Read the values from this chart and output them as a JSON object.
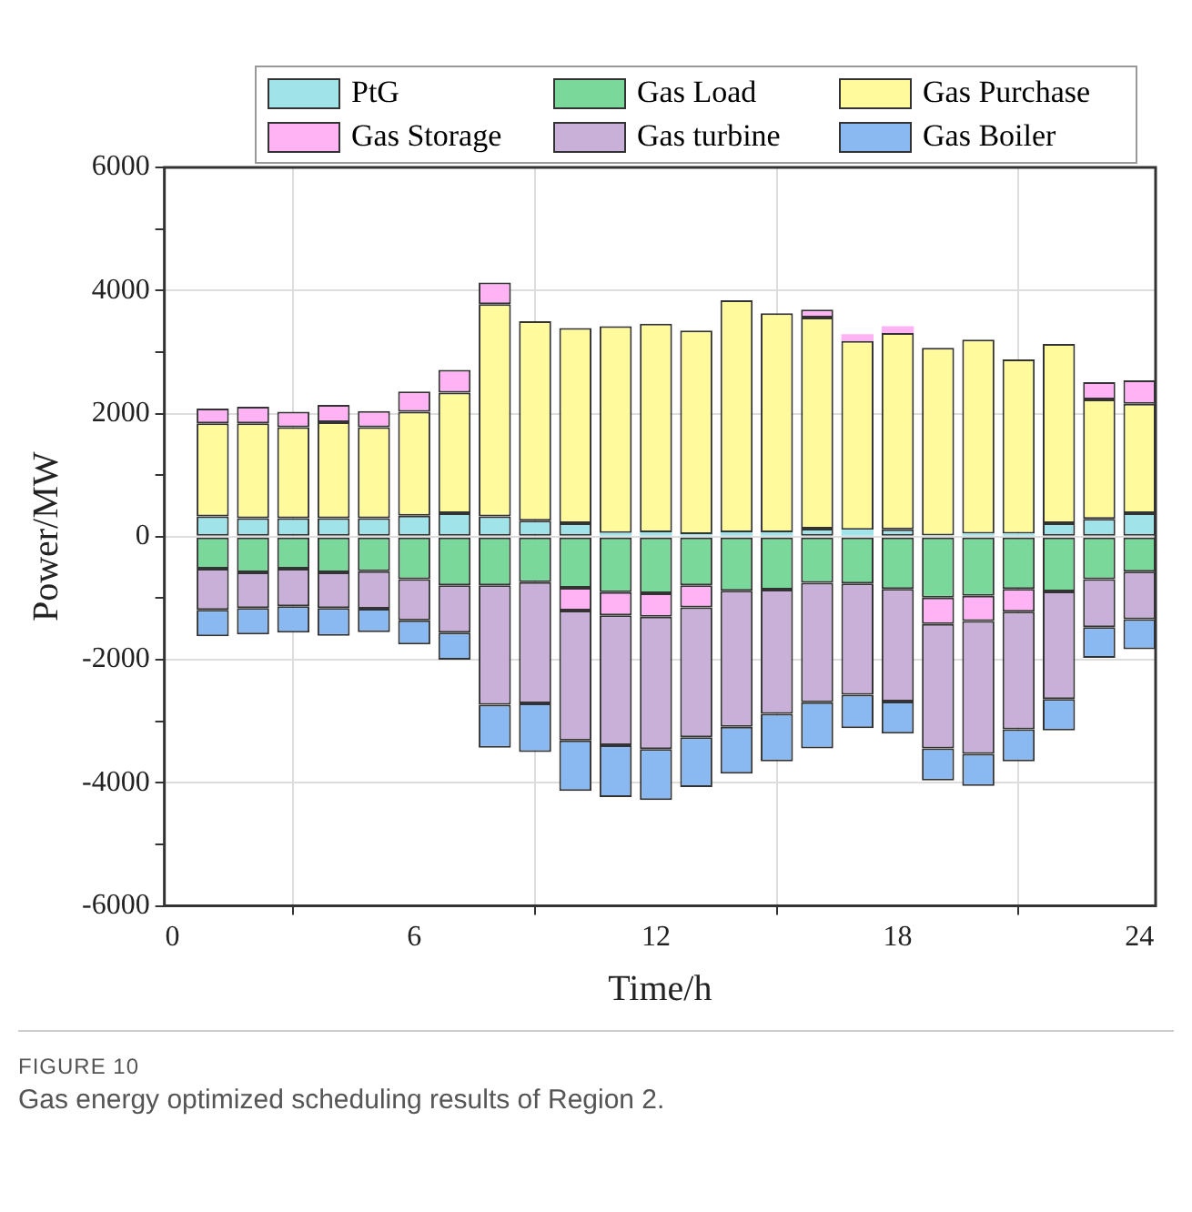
{
  "chart_data": {
    "type": "bar",
    "stacked": true,
    "xlabel": "Time/h",
    "ylabel": "Power/MW",
    "x": [
      1,
      2,
      3,
      4,
      5,
      6,
      7,
      8,
      9,
      10,
      11,
      12,
      13,
      14,
      15,
      16,
      17,
      18,
      19,
      20,
      21,
      22,
      23,
      24
    ],
    "xlim": [
      -0.2,
      24.4
    ],
    "xticks": [
      0,
      6,
      12,
      18,
      24
    ],
    "ylim": [
      -6000,
      6000
    ],
    "yticks": [
      -6000,
      {
        "value": -5000,
        "label": null
      },
      -4000,
      {
        "value": -3000,
        "label": null
      },
      -2000,
      {
        "value": -1000,
        "label": null
      },
      0,
      {
        "value": 1000,
        "label": null
      },
      2000,
      {
        "value": 3000,
        "label": null
      },
      4000,
      {
        "value": 5000,
        "label": null
      },
      6000
    ],
    "grid": true,
    "legend": "top",
    "series": [
      {
        "name": "PtG",
        "color": "#a0e4ea",
        "values": [
          330,
          300,
          300,
          300,
          300,
          340,
          380,
          330,
          260,
          220,
          60,
          70,
          40,
          70,
          70,
          130,
          110,
          120,
          20,
          50,
          50,
          220,
          290,
          380
        ]
      },
      {
        "name": "Gas Load",
        "color": "#7ad89a",
        "values": [
          -520,
          -580,
          -520,
          -580,
          -560,
          -690,
          -790,
          -790,
          -740,
          -830,
          -900,
          -920,
          -790,
          -880,
          -860,
          -750,
          -760,
          -850,
          -990,
          -960,
          -850,
          -890,
          -690,
          -570
        ]
      },
      {
        "name": "Gas Purchase",
        "color": "#fffa9c",
        "values": [
          1510,
          1540,
          1480,
          1560,
          1480,
          1690,
          1960,
          3450,
          3240,
          3170,
          3360,
          3390,
          3310,
          3770,
          3560,
          3430,
          3070,
          3190,
          3050,
          3150,
          2830,
          2910,
          1940,
          1780
        ]
      },
      {
        "name": "Gas Storage",
        "color": "#ffb3f5",
        "values": [
          240,
          270,
          250,
          280,
          260,
          330,
          370,
          350,
          null,
          -370,
          -380,
          -380,
          -360,
          null,
          null,
          130,
          110,
          110,
          -430,
          -410,
          -370,
          null,
          280,
          380
        ]
      },
      {
        "name": "Gas turbine",
        "color": "#c8b0d8",
        "values": [
          -670,
          -580,
          -610,
          -580,
          -610,
          -670,
          -770,
          -1940,
          -1970,
          -2110,
          -2110,
          -2150,
          -2110,
          -2210,
          -2020,
          -1940,
          -1810,
          -1830,
          -2020,
          -2160,
          -1910,
          -1750,
          -780,
          -770
        ]
      },
      {
        "name": "Gas Boiler",
        "color": "#8ab8f0",
        "values": [
          -430,
          -430,
          -430,
          -450,
          -380,
          -390,
          -440,
          -700,
          -790,
          -820,
          -840,
          -830,
          -810,
          -760,
          -770,
          -750,
          -540,
          -520,
          -520,
          -520,
          -520,
          -510,
          -500,
          -490
        ]
      }
    ],
    "annotations": [
      "FIGURE 10",
      "Gas energy optimized scheduling results of Region 2."
    ]
  }
}
